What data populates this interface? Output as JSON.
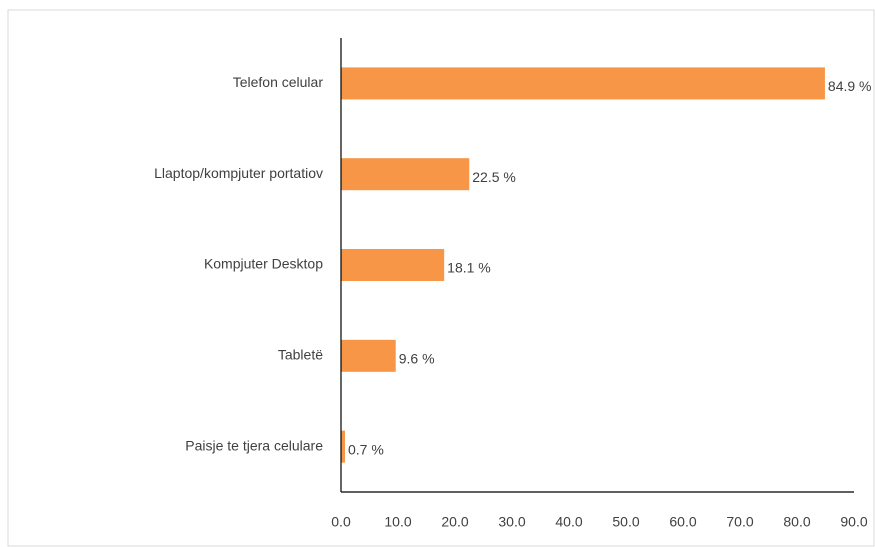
{
  "chart_data": {
    "type": "bar",
    "orientation": "horizontal",
    "categories": [
      "Telefon celular",
      "Llaptop/kompjuter portatiov",
      "Kompjuter Desktop",
      "Tabletë",
      "Paisje te tjera celulare"
    ],
    "values": [
      84.9,
      22.5,
      18.1,
      9.6,
      0.7
    ],
    "value_labels": [
      "84.9 %",
      "22.5 %",
      "18.1 %",
      "9.6 %",
      "0.7 %"
    ],
    "color": "#f79646",
    "xlim": [
      0,
      90
    ],
    "xticks": [
      {
        "value": 0,
        "label": "0.0"
      },
      {
        "value": 10,
        "label": "10.0"
      },
      {
        "value": 20,
        "label": "20.0"
      },
      {
        "value": 30,
        "label": "30.0"
      },
      {
        "value": 40,
        "label": "40.0"
      },
      {
        "value": 50,
        "label": "50.0"
      },
      {
        "value": 60,
        "label": "60.0"
      },
      {
        "value": 70,
        "label": "70.0"
      },
      {
        "value": 80,
        "label": "80.0"
      },
      {
        "value": 90,
        "label": "90.0"
      }
    ],
    "grid": false
  }
}
